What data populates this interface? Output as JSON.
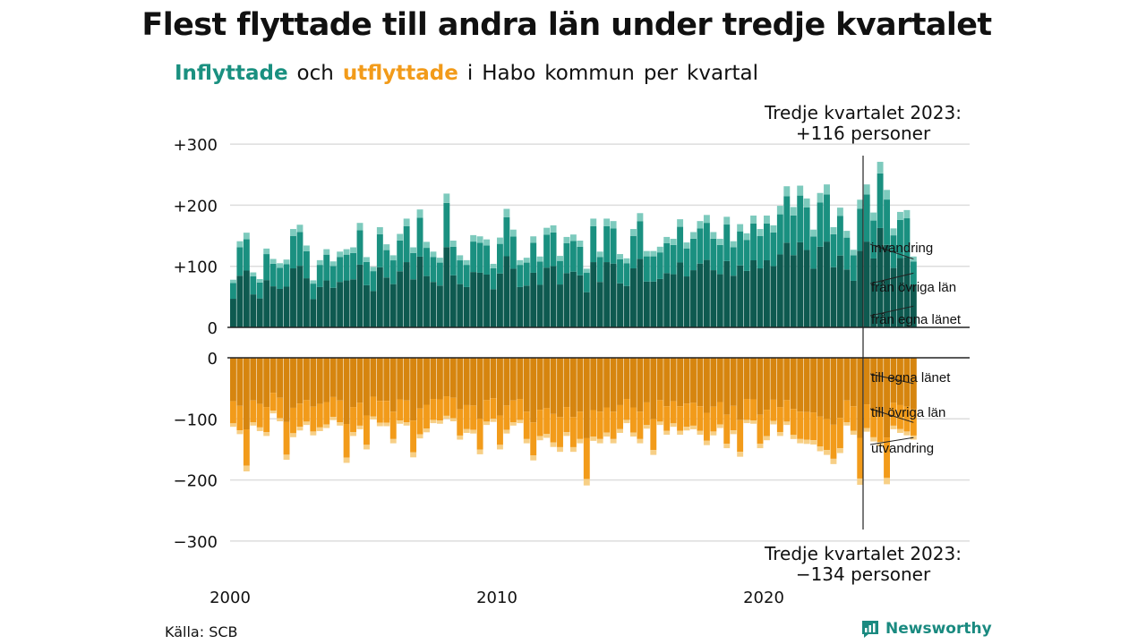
{
  "header": {
    "title": "Flest flyttade till andra län under tredje kvartalet",
    "subtitle_words": [
      {
        "text": "Inflyttade",
        "style": "in"
      },
      {
        "text": "och",
        "style": "plain"
      },
      {
        "text": "utflyttade",
        "style": "out"
      },
      {
        "text": "i",
        "style": "plain"
      },
      {
        "text": "Habo",
        "style": "plain"
      },
      {
        "text": "kommun",
        "style": "plain"
      },
      {
        "text": "per",
        "style": "plain"
      },
      {
        "text": "kvartal",
        "style": "plain"
      }
    ]
  },
  "footer": {
    "source": "Källa: SCB",
    "brand": "Newsworthy"
  },
  "colors": {
    "in_egna": "#0e5a50",
    "in_ovriga": "#1a9080",
    "in_invandring": "#7dcabd",
    "out_egna": "#d6850f",
    "out_ovriga": "#f29b1a",
    "out_utvandring": "#f7cf86",
    "grid": "#dddddd",
    "axis": "#222222"
  },
  "chart_data": {
    "type": "bar",
    "stacked": true,
    "x_start_year": 2000,
    "x_period": "quarter",
    "x_tick_labels": [
      "2000",
      "2010",
      "2020"
    ],
    "y_ticks_top": [
      "+300",
      "+200",
      "+100",
      "0"
    ],
    "y_ticks_bottom": [
      "0",
      "−100",
      "−200",
      "−300"
    ],
    "y_range_top": [
      0,
      300
    ],
    "y_range_bottom": [
      -300,
      0
    ],
    "grid": true,
    "series_labels_in": [
      "invandring",
      "från övriga län",
      "från egna länet"
    ],
    "series_labels_out": [
      "till egna länet",
      "till övriga län",
      "utvandring"
    ],
    "annotation_top": [
      "Tredje kvartalet 2023:",
      "+116 personer"
    ],
    "annotation_bottom": [
      "Tredje kvartalet 2023:",
      "−134 personer"
    ],
    "inflyttade_totals": [
      78,
      141,
      155,
      90,
      79,
      129,
      112,
      105,
      111,
      161,
      168,
      134,
      77,
      110,
      128,
      108,
      124,
      128,
      131,
      171,
      115,
      99,
      164,
      136,
      118,
      153,
      178,
      131,
      193,
      140,
      124,
      114,
      219,
      142,
      118,
      110,
      151,
      149,
      144,
      104,
      147,
      194,
      160,
      110,
      114,
      149,
      116,
      163,
      167,
      117,
      148,
      152,
      142,
      96,
      178,
      124,
      178,
      174,
      120,
      113,
      161,
      187,
      125,
      125,
      132,
      148,
      145,
      177,
      139,
      156,
      174,
      184,
      156,
      145,
      181,
      141,
      169,
      154,
      183,
      161,
      183,
      167,
      199,
      231,
      197,
      232,
      211,
      160,
      220,
      234,
      164,
      196,
      158,
      127,
      209,
      234,
      188,
      271,
      225,
      162,
      189,
      192,
      116
    ],
    "utflyttade_totals": [
      113,
      125,
      186,
      111,
      120,
      128,
      91,
      104,
      167,
      130,
      119,
      110,
      127,
      120,
      115,
      102,
      111,
      172,
      128,
      117,
      150,
      101,
      112,
      112,
      140,
      108,
      111,
      163,
      132,
      122,
      107,
      108,
      100,
      104,
      134,
      123,
      124,
      158,
      110,
      105,
      150,
      124,
      111,
      107,
      140,
      168,
      135,
      131,
      146,
      154,
      128,
      154,
      140,
      209,
      136,
      140,
      129,
      140,
      123,
      107,
      129,
      140,
      116,
      159,
      110,
      126,
      113,
      126,
      119,
      117,
      126,
      143,
      127,
      115,
      148,
      125,
      162,
      107,
      108,
      148,
      135,
      109,
      128,
      110,
      133,
      140,
      141,
      142,
      153,
      159,
      174,
      156,
      111,
      126,
      208,
      121,
      137,
      145,
      207,
      117,
      123,
      127,
      134
    ],
    "share_in": {
      "egna": 0.6,
      "ovriga": 0.33,
      "invandring": 0.07
    },
    "share_out": {
      "egna": 0.63,
      "ovriga": 0.32,
      "utvandring": 0.05
    }
  }
}
